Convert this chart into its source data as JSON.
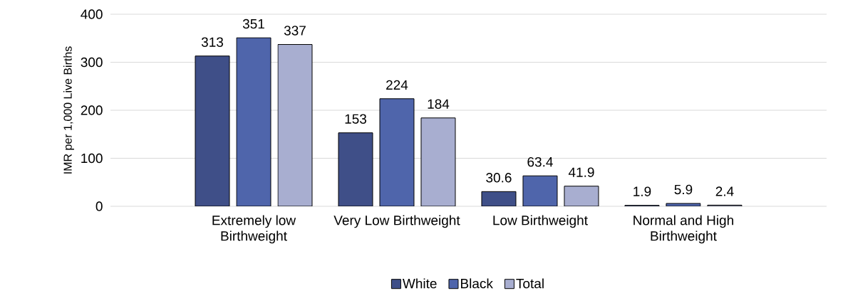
{
  "chart_data": {
    "type": "bar",
    "ylabel": "IMR per 1,000 Live Births",
    "categories": [
      "Extremely low Birthweight",
      "Very Low Birthweight",
      "Low Birthweight",
      "Normal and High Birthweight"
    ],
    "series": [
      {
        "name": "White",
        "color": "#3f4f88",
        "values": [
          313,
          153,
          30.6,
          1.9
        ]
      },
      {
        "name": "Black",
        "color": "#4f65ab",
        "values": [
          351,
          224,
          63.4,
          5.9
        ]
      },
      {
        "name": "Total",
        "color": "#a8aed0",
        "values": [
          337,
          184,
          41.9,
          2.4
        ]
      }
    ],
    "ylim": [
      0,
      400
    ],
    "yticks": [
      0,
      100,
      200,
      300,
      400
    ],
    "grid": "y",
    "legend": "bottom",
    "data_labels": true
  }
}
